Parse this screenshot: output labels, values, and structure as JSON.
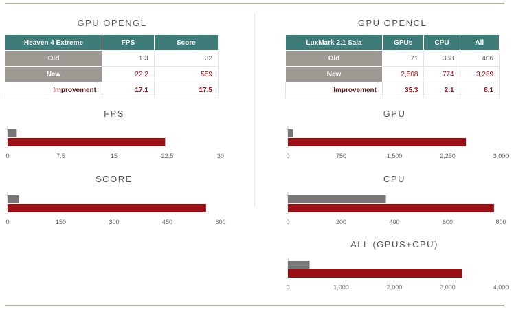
{
  "colors": {
    "teal": "#3d7c78",
    "old": "#777777",
    "new": "#9a0e16"
  },
  "left": {
    "title": "GPU OPENGL",
    "table": {
      "headers": [
        "Heaven 4 Extreme",
        "FPS",
        "Score"
      ],
      "rows": [
        {
          "label": "Old",
          "values": [
            "1.3",
            "32"
          ]
        },
        {
          "label": "New",
          "values": [
            "22.2",
            "559"
          ]
        },
        {
          "label": "Improvement",
          "values": [
            "17.1",
            "17.5"
          ]
        }
      ]
    }
  },
  "right": {
    "title": "GPU OPENCL",
    "table": {
      "headers": [
        "LuxMark 2.1 Sala",
        "GPUs",
        "CPU",
        "All"
      ],
      "rows": [
        {
          "label": "Old",
          "values": [
            "71",
            "368",
            "406"
          ]
        },
        {
          "label": "New",
          "values": [
            "2,508",
            "774",
            "3,269"
          ]
        },
        {
          "label": "Improvement",
          "values": [
            "35.3",
            "2.1",
            "8.1"
          ]
        }
      ]
    }
  },
  "chart_data": [
    {
      "type": "bar",
      "title": "FPS",
      "orientation": "horizontal",
      "categories": [
        "Old",
        "New"
      ],
      "values": [
        1.3,
        22.2
      ],
      "xlim": [
        0,
        30
      ],
      "ticks": [
        "0",
        "7.5",
        "15",
        "22.5",
        "30"
      ]
    },
    {
      "type": "bar",
      "title": "SCORE",
      "orientation": "horizontal",
      "categories": [
        "Old",
        "New"
      ],
      "values": [
        32,
        559
      ],
      "xlim": [
        0,
        600
      ],
      "ticks": [
        "0",
        "150",
        "300",
        "450",
        "600"
      ]
    },
    {
      "type": "bar",
      "title": "GPU",
      "orientation": "horizontal",
      "categories": [
        "Old",
        "New"
      ],
      "values": [
        71,
        2508
      ],
      "xlim": [
        0,
        3000
      ],
      "ticks": [
        "0",
        "750",
        "1,500",
        "2,250",
        "3,000"
      ]
    },
    {
      "type": "bar",
      "title": "CPU",
      "orientation": "horizontal",
      "categories": [
        "Old",
        "New"
      ],
      "values": [
        368,
        774
      ],
      "xlim": [
        0,
        800
      ],
      "ticks": [
        "0",
        "200",
        "400",
        "600",
        "800"
      ]
    },
    {
      "type": "bar",
      "title": "ALL (GPUS+CPU)",
      "orientation": "horizontal",
      "categories": [
        "Old",
        "New"
      ],
      "values": [
        406,
        3269
      ],
      "xlim": [
        0,
        4000
      ],
      "ticks": [
        "0",
        "1,000",
        "2,000",
        "3,000",
        "4,000"
      ]
    }
  ]
}
